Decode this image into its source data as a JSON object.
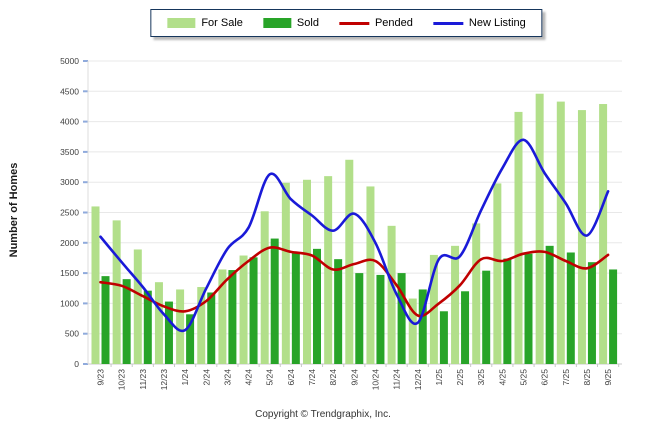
{
  "legend": {
    "items": [
      {
        "label": "For Sale",
        "swatch": "bar",
        "color": "#B2DF8A"
      },
      {
        "label": "Sold",
        "swatch": "bar",
        "color": "#28A428"
      },
      {
        "label": "Pended",
        "swatch": "line",
        "color": "#C00000"
      },
      {
        "label": "New Listing",
        "swatch": "line",
        "color": "#1A1AD8"
      }
    ]
  },
  "y_axis": {
    "title": "Number of Homes",
    "ticks": [
      0,
      500,
      1000,
      1500,
      2000,
      2500,
      3000,
      3500,
      4000,
      4500,
      5000
    ]
  },
  "footer": {
    "copyright": "Copyright © Trendgraphix, Inc."
  },
  "chart_data": {
    "type": "bar",
    "subtype": "grouped bars with overlaid smooth lines",
    "title": "",
    "xlabel": "",
    "ylabel": "Number of Homes",
    "ylim": [
      0,
      5000
    ],
    "ytick_step": 500,
    "grid": true,
    "legend_position": "top-center",
    "categories": [
      "9/23",
      "10/23",
      "11/23",
      "12/23",
      "1/24",
      "2/24",
      "3/24",
      "4/24",
      "5/24",
      "6/24",
      "7/24",
      "8/24",
      "9/24",
      "10/24",
      "11/24",
      "12/24",
      "1/25",
      "2/25",
      "3/25",
      "4/25",
      "5/25",
      "6/25",
      "7/25",
      "8/25",
      "9/25"
    ],
    "series": [
      {
        "name": "For Sale",
        "type": "bar",
        "color": "#B2DF8A",
        "values": [
          2600,
          2370,
          1890,
          1350,
          1230,
          1270,
          1560,
          1790,
          2520,
          2990,
          3040,
          3100,
          3370,
          2930,
          2280,
          1080,
          1800,
          1950,
          2320,
          2980,
          4160,
          4460,
          4330,
          4190,
          4290
        ]
      },
      {
        "name": "Sold",
        "type": "bar",
        "color": "#28A428",
        "values": [
          1450,
          1400,
          1210,
          1030,
          820,
          1180,
          1550,
          1760,
          2070,
          1830,
          1900,
          1730,
          1500,
          1470,
          1500,
          1230,
          870,
          1200,
          1540,
          1740,
          1820,
          1950,
          1840,
          1680,
          1560
        ]
      },
      {
        "name": "Pended",
        "type": "line",
        "color": "#C00000",
        "values": [
          1350,
          1290,
          1120,
          950,
          870,
          1040,
          1400,
          1700,
          1920,
          1850,
          1790,
          1560,
          1650,
          1700,
          1300,
          800,
          1000,
          1300,
          1730,
          1700,
          1820,
          1850,
          1700,
          1580,
          1800
        ]
      },
      {
        "name": "New Listing",
        "type": "line",
        "color": "#1A1AD8",
        "values": [
          2100,
          1680,
          1270,
          820,
          560,
          1250,
          1900,
          2250,
          3130,
          2720,
          2450,
          2200,
          2480,
          2000,
          1150,
          680,
          1730,
          1780,
          2540,
          3230,
          3700,
          3150,
          2650,
          2120,
          2850
        ]
      }
    ]
  }
}
